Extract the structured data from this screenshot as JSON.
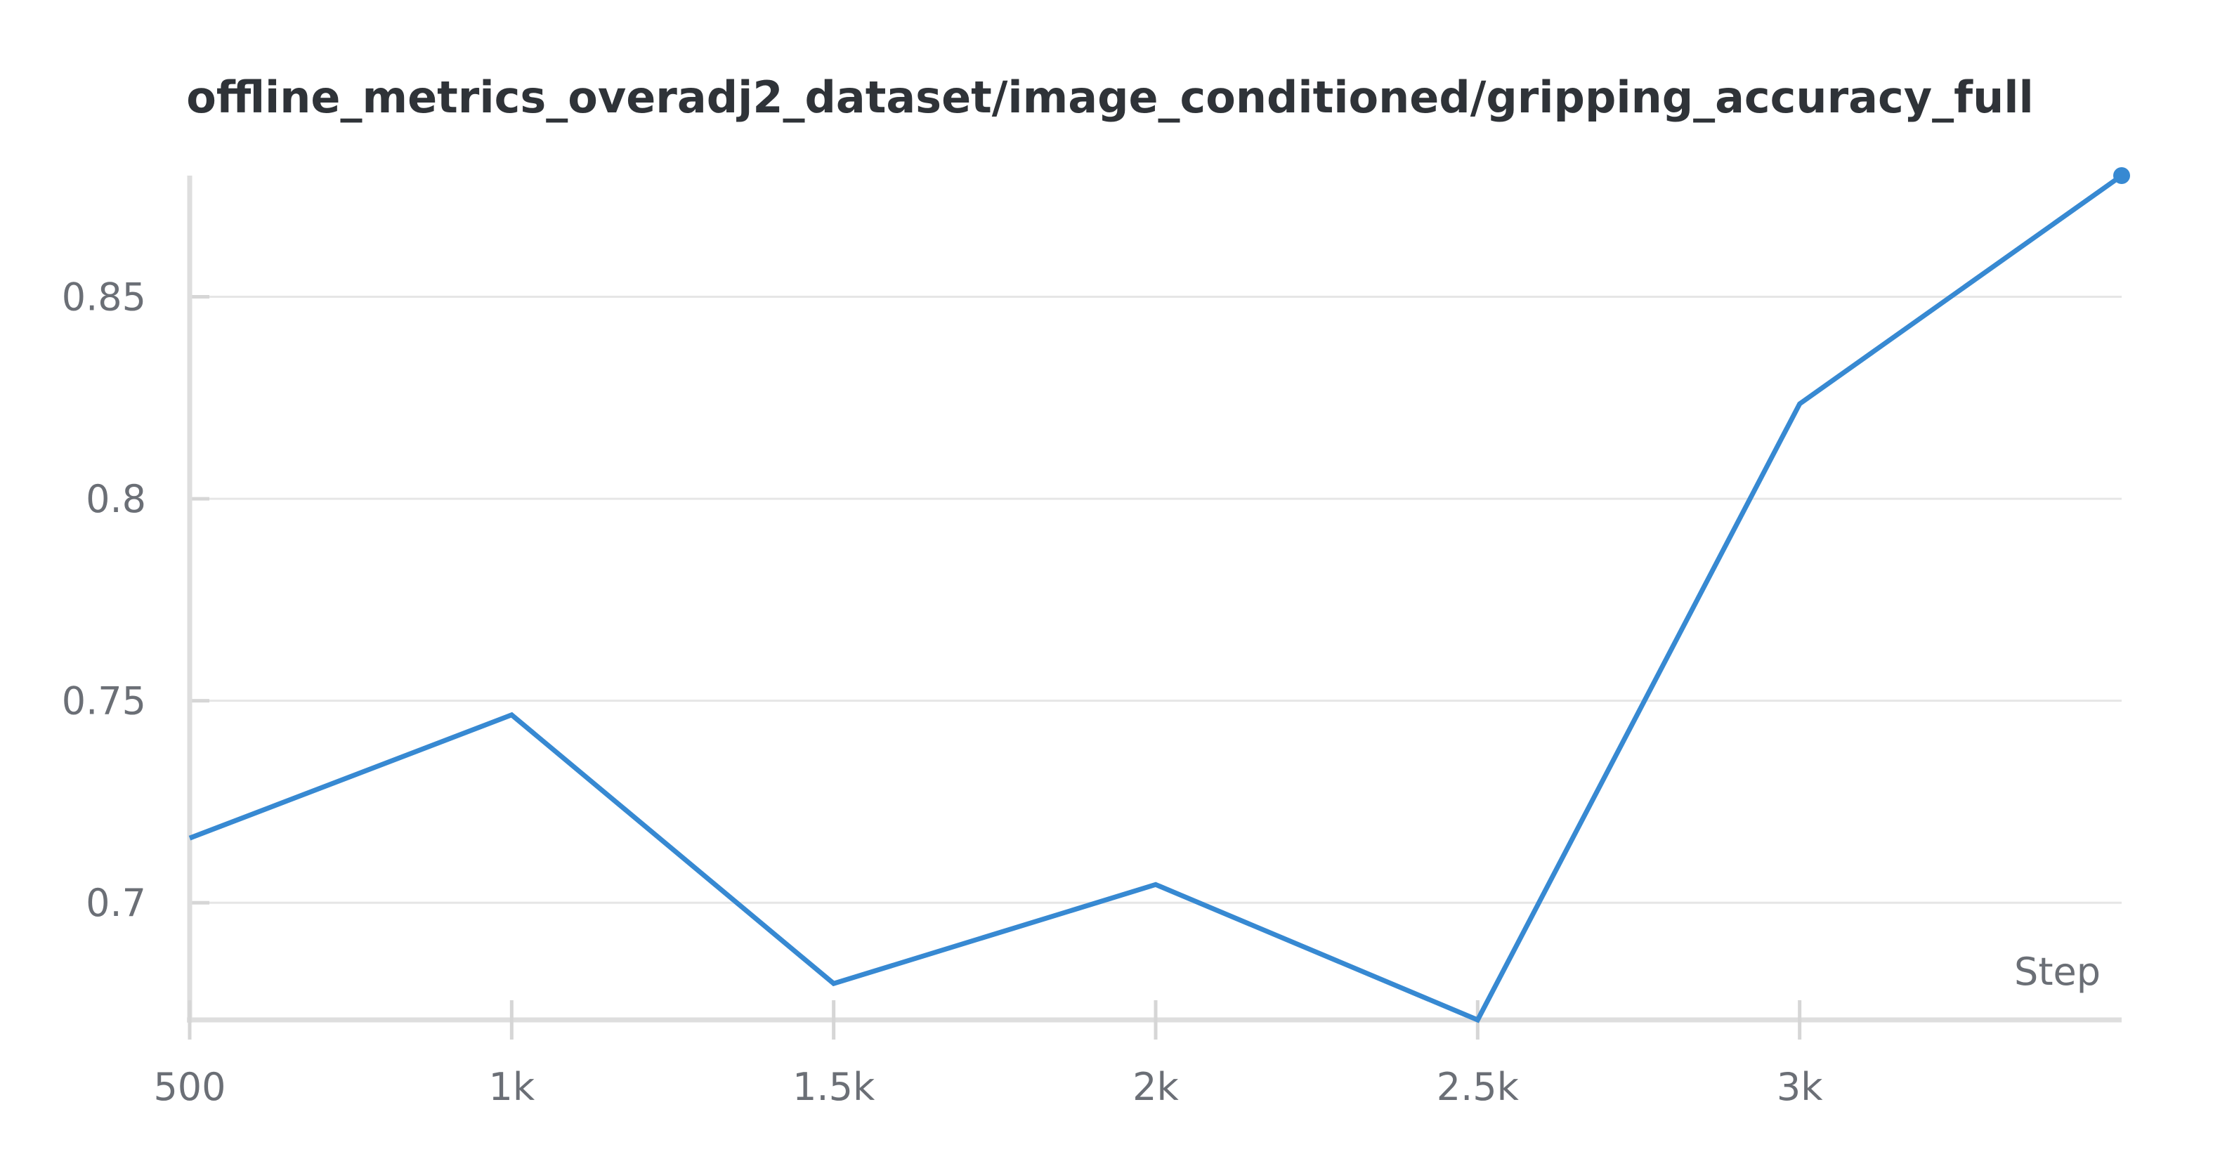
{
  "chart_data": {
    "type": "line",
    "title": "offline_metrics_overadj2_dataset/image_conditioned/gripping_accuracy_full",
    "xlabel": "Step",
    "ylabel": "",
    "xlim": [
      500,
      3500
    ],
    "ylim": [
      0.671,
      0.88
    ],
    "x_ticks": [
      500,
      1000,
      1500,
      2000,
      2500,
      3000
    ],
    "x_tick_labels": [
      "500",
      "1k",
      "1.5k",
      "2k",
      "2.5k",
      "3k"
    ],
    "y_ticks": [
      0.7,
      0.75,
      0.8,
      0.85
    ],
    "y_tick_labels": [
      "0.7",
      "0.75",
      "0.8",
      "0.85"
    ],
    "grid": true,
    "legend": "none",
    "series": [
      {
        "color": "#3789d2",
        "x": [
          500,
          1000,
          1500,
          2000,
          2500,
          3000,
          3500
        ],
        "y": [
          0.716,
          0.7465,
          0.68,
          0.7045,
          0.671,
          0.8235,
          0.88
        ],
        "last_point_marker": true
      }
    ]
  }
}
